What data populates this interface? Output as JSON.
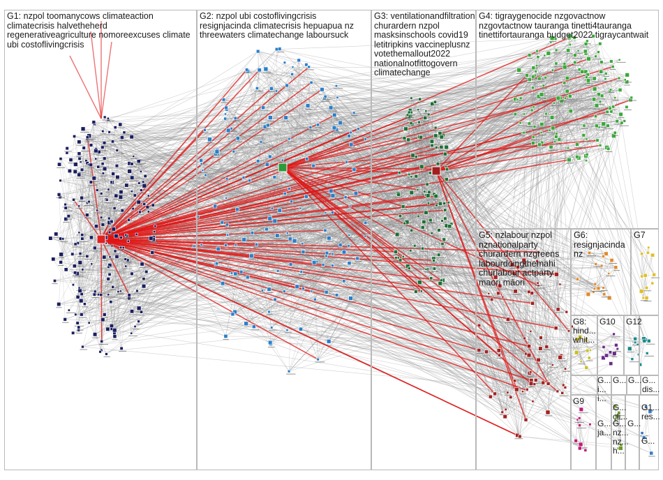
{
  "groups": [
    {
      "id": "G1",
      "label": "G1: nzpol toomanycows climateaction\nclimatecrisis halvetheherd\nregenerativeagriculture nomoreexcuses climate\nubi costoflivingcrisis",
      "color": "#1b1f5e"
    },
    {
      "id": "G2",
      "label": "G2: nzpol ubi costoflivingcrisis\nresignjacinda climatecrisis hepuapua nz\nthreewaters climatechange laboursuck",
      "color": "#2a7fc9"
    },
    {
      "id": "G3",
      "label": "G3: ventilationandfiltration\nchurardern nzpol\nmasksinschools covid19\nletitripkins vaccineplusnz\nvotethemallout2022\nnationalnotfittogovern\nclimatechange",
      "color": "#1f6e35"
    },
    {
      "id": "G4",
      "label": "G4: tigraygenocide nzgovactnow\nnzgovtactnow tauranga tinetti4tauranga\ntinettifortauranga budget2022 tigraycantwait",
      "color": "#3aa83a"
    },
    {
      "id": "G5",
      "label": "G5: nzlabour nzpol\nnznationalparty\nchurardern nzgreens\nlabourdoingthemahi\nchurlabour actparty\nmaori māori",
      "color": "#a32222"
    },
    {
      "id": "G6",
      "label": "G6:\nresignjacinda\nnz",
      "color": "#e08a2a"
    },
    {
      "id": "G7",
      "label": "G7",
      "color": "#e0c020"
    },
    {
      "id": "G8",
      "label": "G8:\nhind...\nwhit...",
      "color": "#c8c020"
    },
    {
      "id": "G9",
      "label": "G9",
      "color": "#c2187a"
    },
    {
      "id": "G10",
      "label": "G10",
      "color": "#6a2a8a"
    },
    {
      "id": "G12",
      "label": "G12",
      "color": "#1a8a8a"
    },
    {
      "id": "G13",
      "label": "G...\nja...",
      "color": "#7a3aa0"
    },
    {
      "id": "G14",
      "label": "G...\nnz...\nnz...\nh...",
      "color": "#444488"
    },
    {
      "id": "G15",
      "label": "G...\ncli...",
      "color": "#6a9a2a"
    },
    {
      "id": "G16",
      "label": "G...\ndis...",
      "color": "#c0b020"
    },
    {
      "id": "G17",
      "label": "G1...\nres...",
      "color": "#3a7ac8"
    },
    {
      "id": "G18",
      "label": "G...",
      "color": "#888888"
    },
    {
      "id": "G19",
      "label": "G...\ni...\ni...",
      "color": "#6a6a6a"
    },
    {
      "id": "G20",
      "label": "G...",
      "color": "#999999"
    },
    {
      "id": "G21",
      "label": "G...",
      "color": "#999999"
    },
    {
      "id": "G22",
      "label": "G...",
      "color": "#999999"
    }
  ],
  "colors": {
    "edge_gray": "#8c8c8c",
    "edge_red": "#e01515",
    "border": "#b9b9b9"
  }
}
